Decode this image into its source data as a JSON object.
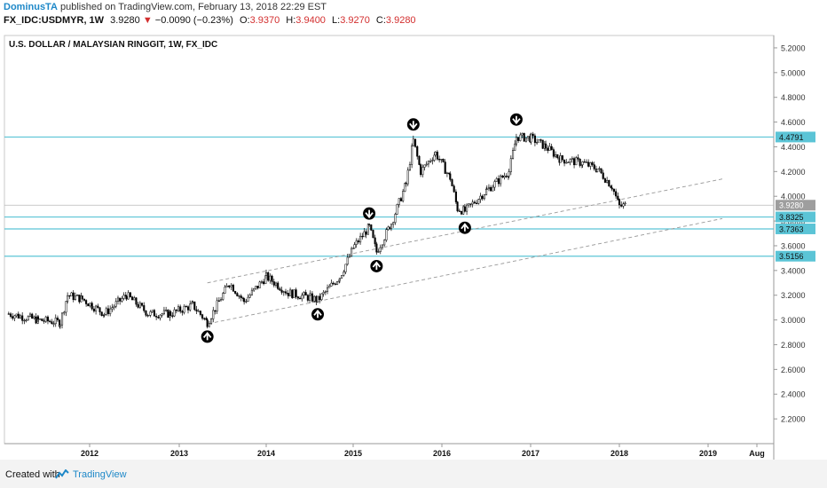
{
  "header": {
    "author": "DominusTA",
    "published": "published on TradingView.com, February 13, 2018 22:29 EST",
    "symbol": "FX_IDC:USDMYR, 1W",
    "last": "3.9280",
    "change_arrow": "▼",
    "change": "−0.0090 (−0.23%)",
    "o_label": "O:",
    "o_value": "3.9370",
    "h_label": "H:",
    "h_value": "3.9400",
    "l_label": "L:",
    "l_value": "3.9270",
    "c_label": "C:",
    "c_value": "3.9280"
  },
  "footer": {
    "created_with": "Created with",
    "brand": "TradingView"
  },
  "colors": {
    "accent": "#1e88c8",
    "level_line": "#5bc4d6",
    "down": "#d32f2f",
    "candle": "#000000"
  },
  "chart_data": {
    "type": "candlestick",
    "title": "U.S. DOLLAR / MALAYSIAN RINGGIT, 1W, FX_IDC",
    "ylim": [
      2.0,
      5.3
    ],
    "yticks": [
      "5.2000",
      "5.0000",
      "4.8000",
      "4.6000",
      "4.4000",
      "4.2000",
      "4.0000",
      "3.8000",
      "3.6000",
      "3.4000",
      "3.2000",
      "3.0000",
      "2.8000",
      "2.6000",
      "2.4000",
      "2.2000"
    ],
    "xticks": [
      "2012",
      "2013",
      "2014",
      "2015",
      "2016",
      "2017",
      "2018",
      "2019",
      "Aug"
    ],
    "last_price": "3.9280",
    "horizontal_levels": [
      {
        "label": "4.4791",
        "value": 4.4791
      },
      {
        "label": "3.8325",
        "value": 3.8325
      },
      {
        "label": "3.7363",
        "value": 3.7363
      },
      {
        "label": "3.5156",
        "value": 3.5156
      }
    ],
    "trend_lines": [
      {
        "points": [
          [
            "2013-05",
            3.3
          ],
          [
            "2019-03",
            4.14
          ]
        ]
      },
      {
        "points": [
          [
            "2013-06",
            2.98
          ],
          [
            "2019-03",
            3.82
          ]
        ]
      }
    ],
    "price_path": [
      [
        "2011-02",
        3.05
      ],
      [
        "2011-06",
        3.0
      ],
      [
        "2011-09",
        2.98
      ],
      [
        "2011-10",
        3.2
      ],
      [
        "2011-12",
        3.17
      ],
      [
        "2012-03",
        3.05
      ],
      [
        "2012-06",
        3.2
      ],
      [
        "2012-09",
        3.05
      ],
      [
        "2012-12",
        3.05
      ],
      [
        "2013-03",
        3.12
      ],
      [
        "2013-05",
        2.98
      ],
      [
        "2013-08",
        3.3
      ],
      [
        "2013-10",
        3.15
      ],
      [
        "2014-01",
        3.35
      ],
      [
        "2014-04",
        3.22
      ],
      [
        "2014-07",
        3.18
      ],
      [
        "2014-08",
        3.16
      ],
      [
        "2014-11",
        3.35
      ],
      [
        "2015-01",
        3.6
      ],
      [
        "2015-03",
        3.75
      ],
      [
        "2015-04",
        3.55
      ],
      [
        "2015-06",
        3.78
      ],
      [
        "2015-08",
        4.1
      ],
      [
        "2015-09",
        4.45
      ],
      [
        "2015-10",
        4.2
      ],
      [
        "2015-12",
        4.35
      ],
      [
        "2016-02",
        4.15
      ],
      [
        "2016-03",
        3.9
      ],
      [
        "2016-04",
        3.88
      ],
      [
        "2016-07",
        4.05
      ],
      [
        "2016-10",
        4.2
      ],
      [
        "2016-11",
        4.48
      ],
      [
        "2017-01",
        4.47
      ],
      [
        "2017-03",
        4.4
      ],
      [
        "2017-05",
        4.3
      ],
      [
        "2017-08",
        4.27
      ],
      [
        "2017-10",
        4.22
      ],
      [
        "2017-12",
        4.08
      ],
      [
        "2018-01",
        3.92
      ],
      [
        "2018-02",
        3.928
      ]
    ],
    "markers": [
      {
        "type": "up",
        "date": "2013-05",
        "value": 2.98
      },
      {
        "type": "up",
        "date": "2014-08",
        "value": 3.16
      },
      {
        "type": "up",
        "date": "2015-04",
        "value": 3.55
      },
      {
        "type": "down",
        "date": "2015-03",
        "value": 3.76
      },
      {
        "type": "down",
        "date": "2015-09",
        "value": 4.48
      },
      {
        "type": "up",
        "date": "2016-04",
        "value": 3.86
      },
      {
        "type": "down",
        "date": "2016-11",
        "value": 4.52
      }
    ]
  }
}
